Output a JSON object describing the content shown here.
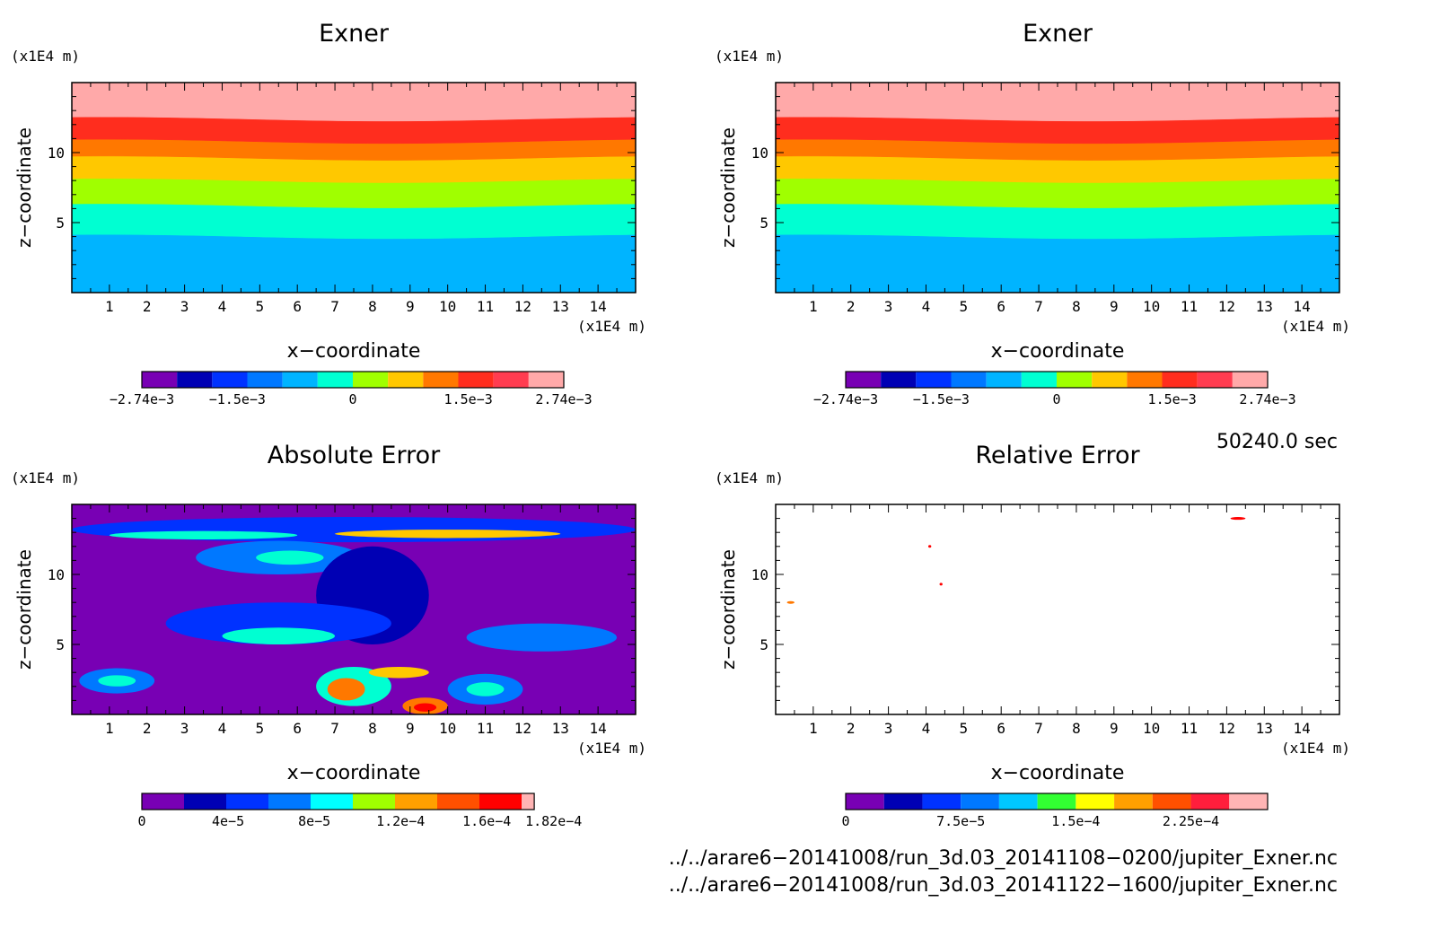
{
  "chart_data": [
    {
      "type": "heatmap",
      "panel": "top-left",
      "title": "Exner",
      "xlabel": "x−coordinate",
      "ylabel": "z−coordinate",
      "x_unit": "(x1E4 m)",
      "y_unit": "(x1E4 m)",
      "xlim": [
        0,
        15
      ],
      "ylim": [
        0,
        15
      ],
      "x_ticks": [
        1,
        2,
        3,
        4,
        5,
        6,
        7,
        8,
        9,
        10,
        11,
        12,
        13,
        14
      ],
      "y_ticks": [
        5,
        10
      ],
      "bands": [
        {
          "from": 0,
          "to": 4.0,
          "color": "#00b4ff"
        },
        {
          "from": 4.0,
          "to": 6.2,
          "color": "#00ffd2"
        },
        {
          "from": 6.2,
          "to": 8.0,
          "color": "#a0ff00"
        },
        {
          "from": 8.0,
          "to": 9.6,
          "color": "#ffc800"
        },
        {
          "from": 9.6,
          "to": 10.8,
          "color": "#ff7800"
        },
        {
          "from": 10.8,
          "to": 12.4,
          "color": "#ff2d1e"
        },
        {
          "from": 12.4,
          "to": 15,
          "color": "#ffa9a9"
        }
      ],
      "colorbar": {
        "colors": [
          "#7800b4",
          "#0000b4",
          "#0032ff",
          "#0078ff",
          "#00b4ff",
          "#00ffd2",
          "#a0ff00",
          "#ffc800",
          "#ff7800",
          "#ff2d1e",
          "#ff3c50",
          "#ffa9a9"
        ],
        "ticks": [
          {
            "v": -0.00274,
            "label": "−2.74e−3"
          },
          {
            "v": -0.0015,
            "label": "−1.5e−3"
          },
          {
            "v": 0,
            "label": "0"
          },
          {
            "v": 0.0015,
            "label": "1.5e−3"
          },
          {
            "v": 0.00274,
            "label": "2.74e−3"
          }
        ],
        "range": [
          -0.00274,
          0.00274
        ]
      }
    },
    {
      "type": "heatmap",
      "panel": "top-right",
      "title": "Exner",
      "xlabel": "x−coordinate",
      "ylabel": "z−coordinate",
      "x_unit": "(x1E4 m)",
      "y_unit": "(x1E4 m)",
      "xlim": [
        0,
        15
      ],
      "ylim": [
        0,
        15
      ],
      "x_ticks": [
        1,
        2,
        3,
        4,
        5,
        6,
        7,
        8,
        9,
        10,
        11,
        12,
        13,
        14
      ],
      "y_ticks": [
        5,
        10
      ],
      "bands": [
        {
          "from": 0,
          "to": 4.0,
          "color": "#00b4ff"
        },
        {
          "from": 4.0,
          "to": 6.2,
          "color": "#00ffd2"
        },
        {
          "from": 6.2,
          "to": 8.0,
          "color": "#a0ff00"
        },
        {
          "from": 8.0,
          "to": 9.6,
          "color": "#ffc800"
        },
        {
          "from": 9.6,
          "to": 10.8,
          "color": "#ff7800"
        },
        {
          "from": 10.8,
          "to": 12.4,
          "color": "#ff2d1e"
        },
        {
          "from": 12.4,
          "to": 15,
          "color": "#ffa9a9"
        }
      ],
      "colorbar": {
        "colors": [
          "#7800b4",
          "#0000b4",
          "#0032ff",
          "#0078ff",
          "#00b4ff",
          "#00ffd2",
          "#a0ff00",
          "#ffc800",
          "#ff7800",
          "#ff2d1e",
          "#ff3c50",
          "#ffa9a9"
        ],
        "ticks": [
          {
            "v": -0.00274,
            "label": "−2.74e−3"
          },
          {
            "v": -0.0015,
            "label": "−1.5e−3"
          },
          {
            "v": 0,
            "label": "0"
          },
          {
            "v": 0.0015,
            "label": "1.5e−3"
          },
          {
            "v": 0.00274,
            "label": "2.74e−3"
          }
        ],
        "range": [
          -0.00274,
          0.00274
        ]
      }
    },
    {
      "type": "heatmap",
      "panel": "bottom-left",
      "title": "Absolute Error",
      "xlabel": "x−coordinate",
      "ylabel": "z−coordinate",
      "x_unit": "(x1E4 m)",
      "y_unit": "(x1E4 m)",
      "xlim": [
        0,
        15
      ],
      "ylim": [
        0,
        15
      ],
      "x_ticks": [
        1,
        2,
        3,
        4,
        5,
        6,
        7,
        8,
        9,
        10,
        11,
        12,
        13,
        14
      ],
      "y_ticks": [
        5,
        10
      ],
      "background": "#7800b4",
      "blobs": [
        {
          "x": 7.5,
          "y": 13.2,
          "rx": 7.5,
          "ry": 0.9,
          "color": "#0032ff"
        },
        {
          "x": 3.5,
          "y": 12.8,
          "rx": 2.5,
          "ry": 0.3,
          "color": "#00ffd2"
        },
        {
          "x": 10.0,
          "y": 12.9,
          "rx": 3.0,
          "ry": 0.3,
          "color": "#ffc800"
        },
        {
          "x": 5.5,
          "y": 11.2,
          "rx": 2.2,
          "ry": 1.2,
          "color": "#0078ff"
        },
        {
          "x": 5.8,
          "y": 11.2,
          "rx": 0.9,
          "ry": 0.5,
          "color": "#00ffd2"
        },
        {
          "x": 8.0,
          "y": 8.5,
          "rx": 1.5,
          "ry": 3.5,
          "color": "#0000b4"
        },
        {
          "x": 5.5,
          "y": 6.5,
          "rx": 3.0,
          "ry": 1.5,
          "color": "#0032ff"
        },
        {
          "x": 5.5,
          "y": 5.6,
          "rx": 1.5,
          "ry": 0.6,
          "color": "#00ffd2"
        },
        {
          "x": 12.5,
          "y": 5.5,
          "rx": 2.0,
          "ry": 1.0,
          "color": "#0078ff"
        },
        {
          "x": 1.2,
          "y": 2.4,
          "rx": 1.0,
          "ry": 0.9,
          "color": "#0078ff"
        },
        {
          "x": 1.2,
          "y": 2.4,
          "rx": 0.5,
          "ry": 0.4,
          "color": "#00ffd2"
        },
        {
          "x": 11.0,
          "y": 1.8,
          "rx": 1.0,
          "ry": 1.1,
          "color": "#0078ff"
        },
        {
          "x": 11.0,
          "y": 1.8,
          "rx": 0.5,
          "ry": 0.5,
          "color": "#00ffd2"
        },
        {
          "x": 7.5,
          "y": 2.0,
          "rx": 1.0,
          "ry": 1.4,
          "color": "#00ffd2"
        },
        {
          "x": 7.3,
          "y": 1.8,
          "rx": 0.5,
          "ry": 0.8,
          "color": "#ff7800"
        },
        {
          "x": 8.7,
          "y": 3.0,
          "rx": 0.8,
          "ry": 0.4,
          "color": "#ffc800"
        },
        {
          "x": 9.4,
          "y": 0.6,
          "rx": 0.6,
          "ry": 0.6,
          "color": "#ff7800"
        },
        {
          "x": 9.4,
          "y": 0.5,
          "rx": 0.3,
          "ry": 0.3,
          "color": "#ff0000"
        }
      ],
      "colorbar": {
        "colors": [
          "#7800b4",
          "#0000b4",
          "#0032ff",
          "#0078ff",
          "#00ffff",
          "#a0ff00",
          "#ffa000",
          "#ff5000",
          "#ff0000",
          "#ffb4b4"
        ],
        "ticks": [
          {
            "v": 0,
            "label": "0"
          },
          {
            "v": 4e-05,
            "label": "4e−5"
          },
          {
            "v": 8e-05,
            "label": "8e−5"
          },
          {
            "v": 0.00012,
            "label": "1.2e−4"
          },
          {
            "v": 0.00016,
            "label": "1.6e−4"
          },
          {
            "v": 0.000182,
            "label": "1.82e−4"
          }
        ],
        "range": [
          0,
          0.000182
        ]
      }
    },
    {
      "type": "heatmap",
      "panel": "bottom-right",
      "title": "Relative Error",
      "xlabel": "x−coordinate",
      "ylabel": "z−coordinate",
      "x_unit": "(x1E4 m)",
      "y_unit": "(x1E4 m)",
      "xlim": [
        0,
        15
      ],
      "ylim": [
        0,
        15
      ],
      "x_ticks": [
        1,
        2,
        3,
        4,
        5,
        6,
        7,
        8,
        9,
        10,
        11,
        12,
        13,
        14
      ],
      "y_ticks": [
        5,
        10
      ],
      "background": "#ffffff",
      "blobs": [
        {
          "x": 12.3,
          "y": 14.0,
          "rx": 0.2,
          "ry": 0.1,
          "color": "#ff0000"
        },
        {
          "x": 4.1,
          "y": 12.0,
          "rx": 0.04,
          "ry": 0.05,
          "color": "#ff0000"
        },
        {
          "x": 4.4,
          "y": 9.3,
          "rx": 0.04,
          "ry": 0.05,
          "color": "#ff0000"
        },
        {
          "x": 0.4,
          "y": 8.0,
          "rx": 0.1,
          "ry": 0.05,
          "color": "#ff7800"
        }
      ],
      "colorbar": {
        "colors": [
          "#7800b4",
          "#0000b4",
          "#0032ff",
          "#0078ff",
          "#00c8ff",
          "#32ff32",
          "#ffff00",
          "#ffa000",
          "#ff5000",
          "#ff1e3c",
          "#ffb4b4"
        ],
        "ticks": [
          {
            "v": 0,
            "label": "0"
          },
          {
            "v": 7.5e-05,
            "label": "7.5e−5"
          },
          {
            "v": 0.00015,
            "label": "1.5e−4"
          },
          {
            "v": 0.000225,
            "label": "2.25e−4"
          }
        ],
        "range": [
          0,
          0.000275
        ]
      }
    }
  ],
  "timestamp": "50240.0 sec",
  "files": [
    "../../arare6−20141008/run_3d.03_20141108−0200/jupiter_Exner.nc",
    "../../arare6−20141008/run_3d.03_20141122−1600/jupiter_Exner.nc"
  ]
}
